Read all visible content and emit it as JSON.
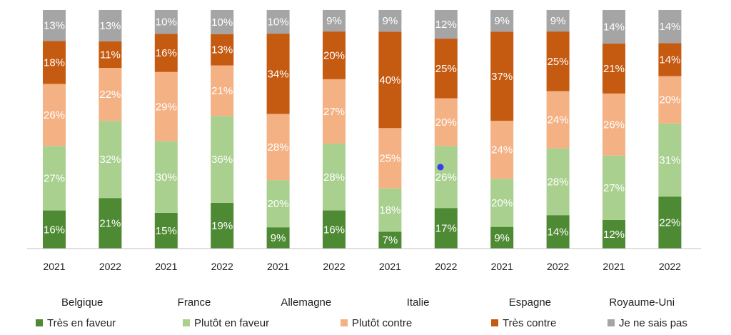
{
  "chart_data": {
    "type": "bar",
    "stacked": true,
    "percent_stacked": true,
    "title": "",
    "xlabel": "",
    "ylabel": "",
    "ylim": [
      0,
      100
    ],
    "grid": false,
    "legend_position": "bottom",
    "groups": [
      "Belgique",
      "France",
      "Allemagne",
      "Italie",
      "Espagne",
      "Royaume-Uni"
    ],
    "categories": [
      "2021",
      "2022",
      "2021",
      "2022",
      "2021",
      "2022",
      "2021",
      "2022",
      "2021",
      "2022",
      "2021",
      "2022"
    ],
    "series": [
      {
        "name": "Très en faveur",
        "color": "#4e8a33",
        "values": [
          16,
          21,
          15,
          19,
          9,
          16,
          7,
          17,
          9,
          14,
          12,
          22
        ]
      },
      {
        "name": "Plutôt en faveur",
        "color": "#a9d08e",
        "values": [
          27,
          32,
          30,
          36,
          20,
          28,
          18,
          26,
          20,
          28,
          27,
          31
        ]
      },
      {
        "name": "Plutôt contre",
        "color": "#f4b183",
        "values": [
          26,
          22,
          29,
          21,
          28,
          27,
          25,
          20,
          24,
          24,
          26,
          20
        ]
      },
      {
        "name": "Très contre",
        "color": "#c55a11",
        "values": [
          18,
          11,
          16,
          13,
          34,
          20,
          40,
          25,
          37,
          25,
          21,
          14
        ]
      },
      {
        "name": "Je ne sais pas",
        "color": "#a5a5a5",
        "values": [
          13,
          13,
          10,
          10,
          10,
          9,
          9,
          12,
          9,
          9,
          14,
          14
        ]
      }
    ],
    "value_suffix": "%",
    "marker_color": "#3b3bf0"
  }
}
